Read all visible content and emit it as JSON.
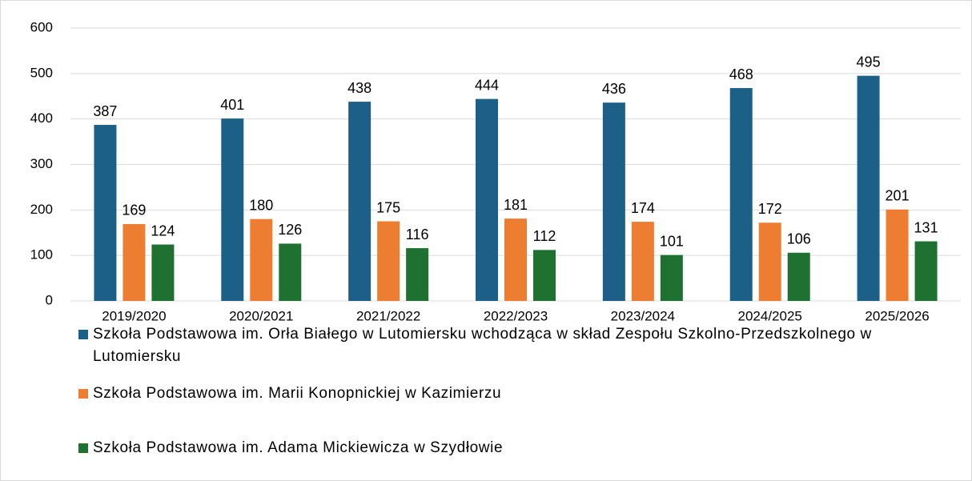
{
  "chart_data": {
    "type": "bar",
    "categories": [
      "2019/2020",
      "2020/2021",
      "2021/2022",
      "2022/2023",
      "2023/2024",
      "2024/2025",
      "2025/2026"
    ],
    "series": [
      {
        "name": "Szkoła Podstawowa im. Orła Białego w Lutomiersku wchodząca w skład Zespołu Szkolno-Przedszkolnego w Lutomiersku",
        "color": "#1c6087",
        "values": [
          387,
          401,
          438,
          444,
          436,
          468,
          495
        ]
      },
      {
        "name": "Szkoła Podstawowa im. Marii Konopnickiej w Kazimierzu",
        "color": "#ed7d31",
        "values": [
          169,
          180,
          175,
          181,
          174,
          172,
          201
        ]
      },
      {
        "name": "Szkoła Podstawowa im. Adama Mickiewicza w Szydłowie",
        "color": "#1e7130",
        "values": [
          124,
          126,
          116,
          112,
          101,
          106,
          131
        ]
      }
    ],
    "ylim": [
      0,
      600
    ],
    "yticks": [
      0,
      100,
      200,
      300,
      400,
      500,
      600
    ],
    "grid": true,
    "legend": "bottom"
  }
}
